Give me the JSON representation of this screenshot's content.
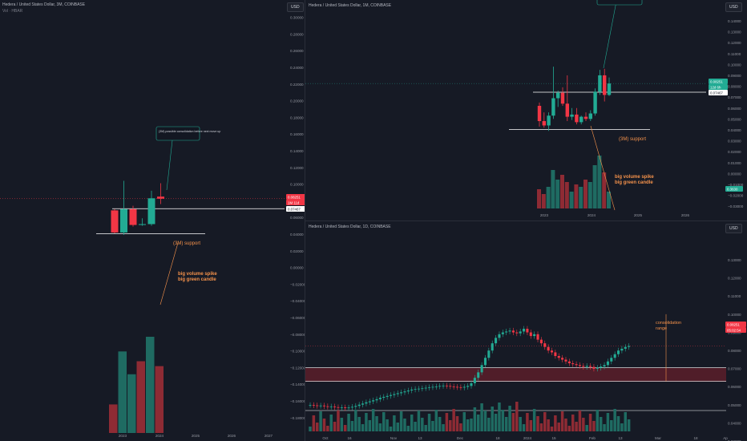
{
  "colors": {
    "bg": "#161a25",
    "up": "#22ab94",
    "down": "#f23645",
    "vol_up": "#1f6b62",
    "vol_down": "#8e2b34",
    "text": "#9598a1",
    "level": "#ffffff",
    "note": "#f5924b",
    "grid": "#1e222d"
  },
  "panel1": {
    "title": "Hedera / United States Dollar, 3M, COINBASE",
    "subtitle": "Vol · HBAR",
    "usd": "USD",
    "price_ticks": [
      "0.30000",
      "0.28000",
      "0.26000",
      "0.24000",
      "0.22000",
      "0.20000",
      "0.18000",
      "0.16000",
      "0.14000",
      "0.12000",
      "0.10000",
      "0.08000",
      "0.06000",
      "0.04000",
      "0.02000",
      "0.00000",
      "−0.02000",
      "−0.04000",
      "−0.06000",
      "−0.08000",
      "−0.10000",
      "−0.12000",
      "−0.14000",
      "−0.16000",
      "−0.18000"
    ],
    "price_tags": [
      "0.08251",
      "1M 11d",
      "0.07467"
    ],
    "time_ticks": [
      "2023",
      "2024",
      "2025",
      "2026",
      "2027"
    ],
    "annotations": {
      "callout": "(3M) possible consolidation before next move up",
      "support": "(3M) support",
      "volume_note_1": "big volume spike",
      "volume_note_2": "big green candle"
    },
    "chart_data": {
      "type": "candlestick",
      "timeframe": "3M",
      "candles": [
        {
          "o": 0.0685,
          "h": 0.07,
          "l": 0.041,
          "c": 0.042
        },
        {
          "o": 0.042,
          "h": 0.104,
          "l": 0.039,
          "c": 0.07
        },
        {
          "o": 0.07,
          "h": 0.074,
          "l": 0.049,
          "c": 0.051
        },
        {
          "o": 0.051,
          "h": 0.059,
          "l": 0.05,
          "c": 0.052
        },
        {
          "o": 0.052,
          "h": 0.092,
          "l": 0.05,
          "c": 0.083
        },
        {
          "o": 0.085,
          "h": 0.101,
          "l": 0.076,
          "c": 0.0825
        }
      ],
      "volumes": [
        0.35,
        1.0,
        0.72,
        0.88,
        1.18,
        0.82
      ],
      "volume_up": [
        false,
        true,
        true,
        false,
        true,
        false
      ]
    }
  },
  "panel2": {
    "title": "Hedera / United States Dollar, 1M, COINBASE",
    "usd": "USD",
    "price_ticks": [
      "0.14000",
      "0.13000",
      "0.12000",
      "0.11000",
      "0.10000",
      "0.09000",
      "0.08000",
      "0.07000",
      "0.06000",
      "0.05000",
      "0.04000",
      "0.03000",
      "0.02000",
      "0.01000",
      "0.00000",
      "−0.01000",
      "−0.02000",
      "−0.03000"
    ],
    "price_tags": [
      "0.08251",
      "12d 6h",
      "0.07467"
    ],
    "vol_tag": "0.3630",
    "time_ticks": [
      "2023",
      "2024",
      "2025",
      "2026"
    ],
    "annotations": {
      "support": "(3M) support",
      "volume_note_1": "big volume spike",
      "volume_note_2": "big green candle"
    },
    "chart_data": {
      "type": "candlestick",
      "timeframe": "1M",
      "candles": [
        {
          "o": 0.062,
          "h": 0.065,
          "l": 0.043,
          "c": 0.048
        },
        {
          "o": 0.048,
          "h": 0.056,
          "l": 0.042,
          "c": 0.044
        },
        {
          "o": 0.044,
          "h": 0.056,
          "l": 0.039,
          "c": 0.053
        },
        {
          "o": 0.053,
          "h": 0.098,
          "l": 0.05,
          "c": 0.069
        },
        {
          "o": 0.069,
          "h": 0.076,
          "l": 0.061,
          "c": 0.074
        },
        {
          "o": 0.074,
          "h": 0.079,
          "l": 0.062,
          "c": 0.064
        },
        {
          "o": 0.064,
          "h": 0.09,
          "l": 0.048,
          "c": 0.052
        },
        {
          "o": 0.052,
          "h": 0.06,
          "l": 0.049,
          "c": 0.054
        },
        {
          "o": 0.054,
          "h": 0.06,
          "l": 0.045,
          "c": 0.047
        },
        {
          "o": 0.047,
          "h": 0.053,
          "l": 0.045,
          "c": 0.052
        },
        {
          "o": 0.052,
          "h": 0.056,
          "l": 0.048,
          "c": 0.05
        },
        {
          "o": 0.05,
          "h": 0.058,
          "l": 0.048,
          "c": 0.055
        },
        {
          "o": 0.055,
          "h": 0.078,
          "l": 0.053,
          "c": 0.075
        },
        {
          "o": 0.075,
          "h": 0.095,
          "l": 0.072,
          "c": 0.09
        },
        {
          "o": 0.09,
          "h": 0.096,
          "l": 0.066,
          "c": 0.072
        },
        {
          "o": 0.072,
          "h": 0.088,
          "l": 0.071,
          "c": 0.0825
        }
      ],
      "volumes": [
        0.4,
        0.3,
        0.45,
        0.8,
        0.6,
        0.7,
        0.55,
        0.35,
        0.5,
        0.45,
        0.6,
        0.55,
        0.9,
        1.1,
        0.75,
        0.35
      ],
      "volume_up": [
        false,
        false,
        true,
        true,
        true,
        false,
        false,
        true,
        false,
        true,
        false,
        true,
        true,
        true,
        false,
        true
      ]
    }
  },
  "panel3": {
    "title": "Hedera / United States Dollar, 1D, COINBASE",
    "usd": "USD",
    "price_ticks": [
      "0.13000",
      "0.12000",
      "0.11000",
      "0.10000",
      "0.09000",
      "0.08000",
      "0.07000",
      "0.06000",
      "0.05000",
      "0.04000",
      "0.03000"
    ],
    "price_tags": [
      "0.08251",
      "05:02:54"
    ],
    "time_ticks": [
      "Oct",
      "16",
      "Nov",
      "13",
      "Dec",
      "18",
      "2024",
      "15",
      "Feb",
      "13",
      "Mar",
      "18",
      "Ap"
    ],
    "annotations": {
      "range_1": "consolidation",
      "range_2": "range"
    },
    "chart_data": {
      "type": "candlestick",
      "timeframe": "1D",
      "closes": [
        0.05,
        0.0498,
        0.0495,
        0.0497,
        0.0493,
        0.049,
        0.0492,
        0.0488,
        0.0485,
        0.0487,
        0.0483,
        0.0486,
        0.049,
        0.0495,
        0.0502,
        0.0508,
        0.0515,
        0.052,
        0.0526,
        0.0532,
        0.054,
        0.0545,
        0.055,
        0.0555,
        0.056,
        0.0565,
        0.057,
        0.0575,
        0.058,
        0.0585,
        0.0588,
        0.059,
        0.0592,
        0.0595,
        0.0598,
        0.06,
        0.0602,
        0.0605,
        0.0607,
        0.0605,
        0.0602,
        0.06,
        0.0598,
        0.0596,
        0.06,
        0.0605,
        0.062,
        0.065,
        0.068,
        0.072,
        0.076,
        0.08,
        0.084,
        0.087,
        0.089,
        0.09,
        0.0905,
        0.091,
        0.09,
        0.0895,
        0.0905,
        0.092,
        0.09,
        0.088,
        0.089,
        0.086,
        0.084,
        0.082,
        0.08,
        0.079,
        0.077,
        0.076,
        0.075,
        0.074,
        0.073,
        0.0725,
        0.072,
        0.0715,
        0.071,
        0.0715,
        0.071,
        0.07,
        0.0705,
        0.0712,
        0.072,
        0.074,
        0.076,
        0.078,
        0.08,
        0.081,
        0.082,
        0.0825
      ]
    }
  }
}
